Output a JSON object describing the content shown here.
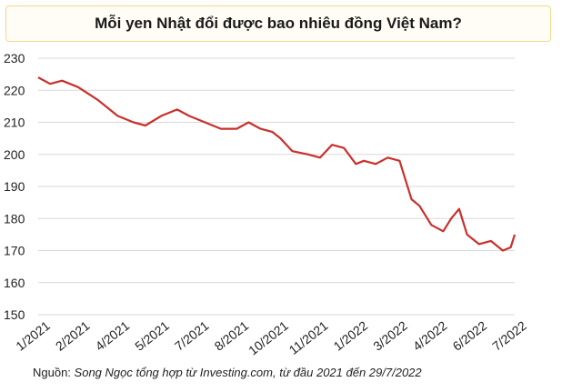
{
  "header": {
    "title": "Mỗi yen Nhật đổi được bao nhiêu đồng Việt Nam?"
  },
  "footer": {
    "source_label": "Nguồn:",
    "source_text": "Song Ngọc tổng hợp từ Investing.com, từ đầu 2021 đến 29/7/2022"
  },
  "chart_data": {
    "type": "line",
    "title": "Mỗi yen Nhật đổi được bao nhiêu đồng Việt Nam?",
    "xlabel": "",
    "ylabel": "",
    "ylim": [
      150,
      230
    ],
    "yticks": [
      150,
      160,
      170,
      180,
      190,
      200,
      210,
      220,
      230
    ],
    "grid": "horizontal",
    "legend": "none",
    "line_color": "#c9302c",
    "categories": [
      "1/2021",
      "2/2021",
      "4/2021",
      "5/2021",
      "7/2021",
      "8/2021",
      "10/2021",
      "11/2021",
      "1/2022",
      "3/2022",
      "4/2022",
      "6/2022",
      "7/2022"
    ],
    "series": [
      {
        "x": [
          0,
          0.3,
          0.6,
          1.0,
          1.5,
          2.0,
          2.4,
          2.7,
          3.1,
          3.5,
          3.8,
          4.2,
          4.6,
          5.0,
          5.3,
          5.6,
          5.9,
          6.1,
          6.4,
          6.8,
          7.1,
          7.4,
          7.7,
          8.0,
          8.2,
          8.5,
          8.8,
          9.1,
          9.4,
          9.6,
          9.9,
          10.2,
          10.4,
          10.6,
          10.8,
          11.1,
          11.4,
          11.7,
          11.9,
          12.0
        ],
        "y": [
          224,
          222,
          223,
          221,
          217,
          212,
          210,
          209,
          212,
          214,
          212,
          210,
          208,
          208,
          210,
          208,
          207,
          205,
          201,
          200,
          199,
          203,
          202,
          197,
          198,
          197,
          199,
          198,
          186,
          184,
          178,
          176,
          180,
          183,
          175,
          172,
          173,
          170,
          171,
          175
        ]
      }
    ]
  }
}
